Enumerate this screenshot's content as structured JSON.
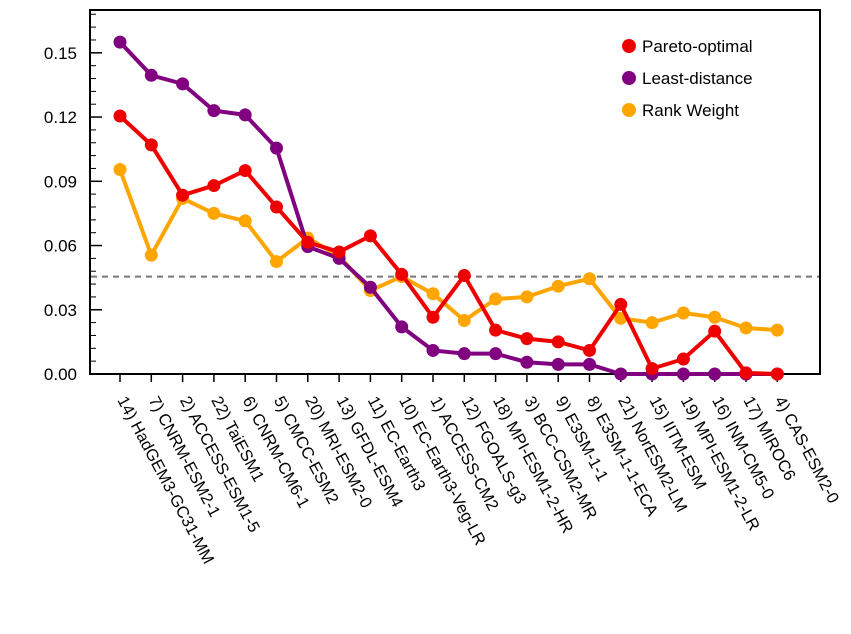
{
  "chart_data": {
    "type": "line",
    "title": "",
    "xlabel": "",
    "ylabel": "",
    "categories": [
      "14) HadGEM3-GC31-MM",
      "7) CNRM-ESM2-1",
      "2) ACCESS-ESM1-5",
      "22) TaiESM1",
      "6) CNRM-CM6-1",
      "5) CMCC-ESM2",
      "20) MRI-ESM2-0",
      "13) GFDL-ESM4",
      "11) EC-Earth3",
      "10) EC-Earth3-Veg-LR",
      "1) ACCESS-CM2",
      "12) FGOALS-g3",
      "18) MPI-ESM1-2-HR",
      "3) BCC-CSM2-MR",
      "9) E3SM-1-1",
      "8) E3SM-1-1-ECA",
      "21) NorESM2-LM",
      "15) IITM-ESM",
      "19) MPI-ESM1-2-LR",
      "16) INM-CM5-0",
      "17) MIROC6",
      "4) CAS-ESM2-0"
    ],
    "ylim": [
      0,
      0.17
    ],
    "yticks": [
      "0.00",
      "0.03",
      "0.06",
      "0.09",
      "0.12",
      "0.15"
    ],
    "reference_line": 0.0455,
    "legend_position": "top-right",
    "grid": false,
    "series": [
      {
        "name": "Pareto-optimal",
        "color": "#ee0000",
        "values": [
          0.1205,
          0.107,
          0.0835,
          0.088,
          0.095,
          0.078,
          0.0615,
          0.057,
          0.0645,
          0.0465,
          0.0265,
          0.046,
          0.0205,
          0.0165,
          0.015,
          0.011,
          0.0325,
          0.0025,
          0.007,
          0.02,
          0.0005,
          0.0
        ]
      },
      {
        "name": "Least-distance",
        "color": "#800080",
        "values": [
          0.155,
          0.1395,
          0.1355,
          0.123,
          0.121,
          0.1055,
          0.0595,
          0.054,
          0.0405,
          0.022,
          0.011,
          0.0095,
          0.0095,
          0.0055,
          0.0045,
          0.0045,
          0.0,
          0.0,
          0.0,
          0.0,
          0.0,
          0.0
        ]
      },
      {
        "name": "Rank Weight",
        "color": "#ffa500",
        "values": [
          0.0955,
          0.0555,
          0.082,
          0.075,
          0.0715,
          0.0525,
          0.0635,
          0.055,
          0.039,
          0.0455,
          0.0375,
          0.025,
          0.035,
          0.036,
          0.041,
          0.0445,
          0.026,
          0.024,
          0.0285,
          0.0265,
          0.0215,
          0.0205
        ]
      }
    ]
  }
}
